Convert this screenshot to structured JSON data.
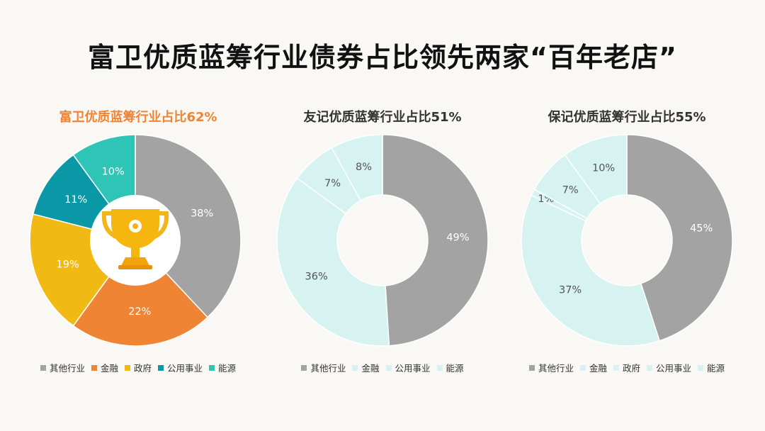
{
  "title": "富卫优质蓝筹行业债券占比领先两家“百年老店”",
  "colors": {
    "other": "#a3a3a3",
    "finance": "#ee8434",
    "government": "#f1b914",
    "utilities": "#0a97a6",
    "energy": "#2ec5b6",
    "light": "#d6f2f1",
    "title_accent": "#ee8434"
  },
  "chart_data": [
    {
      "type": "pie",
      "title": "富卫优质蓝筹行业占比62%",
      "hole": "trophy-icon",
      "categories": [
        "其他行业",
        "金融",
        "政府",
        "公用事业",
        "能源"
      ],
      "values": [
        38,
        22,
        19,
        11,
        10
      ],
      "labels": [
        "38%",
        "22%",
        "19%",
        "11%",
        "10%"
      ],
      "colors": [
        "#a3a3a3",
        "#ee8434",
        "#f1b914",
        "#0a97a6",
        "#2ec5b6"
      ],
      "legend": [
        "其他行业",
        "金融",
        "政府",
        "公用事业",
        "能源"
      ],
      "legend_colors": [
        "#a3a3a3",
        "#ee8434",
        "#f1b914",
        "#0a97a6",
        "#2ec5b6"
      ]
    },
    {
      "type": "donut",
      "title": "友记优质蓝筹行业占比51%",
      "categories": [
        "其他行业",
        "公用事业",
        "金融",
        "能源"
      ],
      "values": [
        49,
        36,
        7,
        8
      ],
      "labels": [
        "49%",
        "36%",
        "7%",
        "8%"
      ],
      "colors": [
        "#a3a3a3",
        "#d6f2f1",
        "#d6f2f1",
        "#d6f2f1"
      ],
      "legend": [
        "其他行业",
        "金融",
        "公用事业",
        "能源"
      ],
      "legend_colors": [
        "#a3a3a3",
        "#d6f2f1",
        "#d6f2f1",
        "#d6f2f1"
      ]
    },
    {
      "type": "donut",
      "title": "保记优质蓝筹行业占比55%",
      "categories": [
        "其他行业",
        "公用事业",
        "政府",
        "金融",
        "能源"
      ],
      "values": [
        45,
        37,
        1,
        7,
        10
      ],
      "labels": [
        "45%",
        "37%",
        "1%",
        "7%",
        "10%"
      ],
      "colors": [
        "#a3a3a3",
        "#d6f2f1",
        "#d6f2f1",
        "#d6f2f1",
        "#d6f2f1"
      ],
      "legend": [
        "其他行业",
        "金融",
        "政府",
        "公用事业",
        "能源"
      ],
      "legend_colors": [
        "#a3a3a3",
        "#d6f2f1",
        "#d6f2f1",
        "#d6f2f1",
        "#d6f2f1"
      ]
    }
  ]
}
